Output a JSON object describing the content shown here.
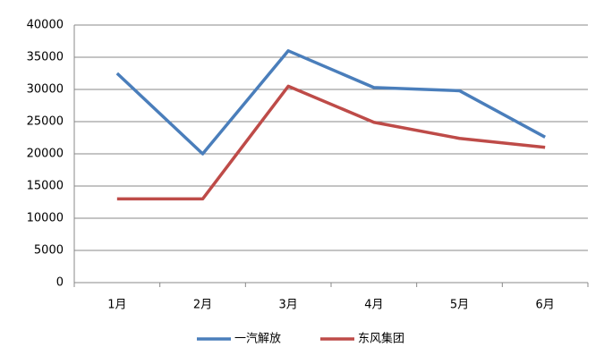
{
  "chart_data": {
    "type": "line",
    "categories": [
      "1月",
      "2月",
      "3月",
      "4月",
      "5月",
      "6月"
    ],
    "series": [
      {
        "name": "一汽解放",
        "color": "#4a7ebb",
        "values": [
          32500,
          20000,
          36000,
          30300,
          29800,
          22600
        ]
      },
      {
        "name": "东风集团",
        "color": "#be4b48",
        "values": [
          13000,
          13000,
          30500,
          24900,
          22400,
          21000
        ]
      }
    ],
    "ylim": [
      0,
      40000
    ],
    "yticks": [
      0,
      5000,
      10000,
      15000,
      20000,
      25000,
      30000,
      35000,
      40000
    ],
    "grid": true,
    "legend": "bottom"
  }
}
